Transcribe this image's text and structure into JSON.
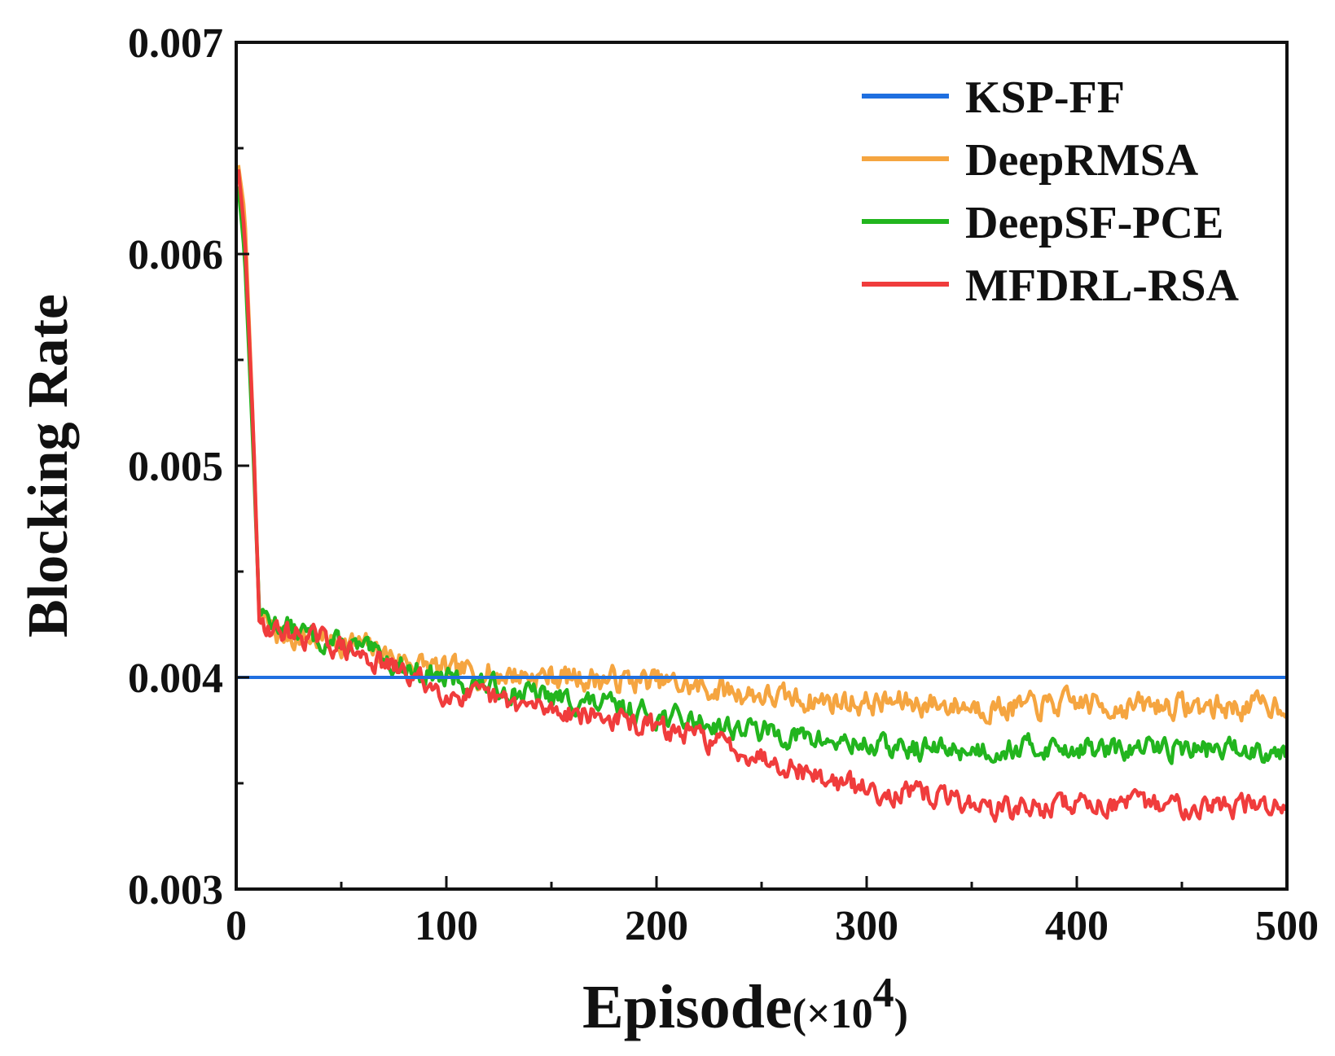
{
  "chart_data": {
    "type": "line",
    "title": "",
    "xlabel": "Episode",
    "xlabel_suffix": "(×10",
    "xlabel_exponent": "4",
    "xlabel_close": ")",
    "ylabel": "Blocking Rate",
    "xlim": [
      0,
      500
    ],
    "ylim": [
      0.003,
      0.007
    ],
    "xticks": [
      0,
      100,
      200,
      300,
      400,
      500
    ],
    "xtick_labels": [
      "0",
      "100",
      "200",
      "300",
      "400",
      "500"
    ],
    "yticks": [
      0.003,
      0.004,
      0.005,
      0.006,
      0.007
    ],
    "ytick_labels": [
      "0.003",
      "0.004",
      "0.005",
      "0.006",
      "0.007"
    ],
    "grid": false,
    "legend_position": "top-right",
    "series": [
      {
        "name": "KSP-FF",
        "color": "#1f6fe0",
        "noise": 0,
        "seed": 1,
        "points": [
          [
            0,
            0.004
          ],
          [
            500,
            0.004
          ]
        ]
      },
      {
        "name": "DeepRMSA",
        "color": "#f5a540",
        "noise": 5e-05,
        "seed": 7,
        "points": [
          [
            1,
            0.00642
          ],
          [
            4,
            0.0062
          ],
          [
            8,
            0.0052
          ],
          [
            11,
            0.00428
          ],
          [
            20,
            0.0042
          ],
          [
            40,
            0.00418
          ],
          [
            60,
            0.00415
          ],
          [
            80,
            0.00408
          ],
          [
            100,
            0.00403
          ],
          [
            120,
            0.00402
          ],
          [
            140,
            0.00401
          ],
          [
            160,
            0.004
          ],
          [
            180,
            0.00399
          ],
          [
            200,
            0.00398
          ],
          [
            220,
            0.00395
          ],
          [
            240,
            0.00393
          ],
          [
            260,
            0.0039
          ],
          [
            280,
            0.00389
          ],
          [
            300,
            0.00388
          ],
          [
            320,
            0.00388
          ],
          [
            340,
            0.00387
          ],
          [
            360,
            0.00386
          ],
          [
            380,
            0.00386
          ],
          [
            400,
            0.00388
          ],
          [
            420,
            0.00386
          ],
          [
            440,
            0.00387
          ],
          [
            460,
            0.00386
          ],
          [
            480,
            0.00386
          ],
          [
            500,
            0.00388
          ]
        ]
      },
      {
        "name": "DeepSF-PCE",
        "color": "#22b51e",
        "noise": 4.5e-05,
        "seed": 13,
        "points": [
          [
            1,
            0.00632
          ],
          [
            4,
            0.006
          ],
          [
            8,
            0.0051
          ],
          [
            11,
            0.0043
          ],
          [
            20,
            0.00425
          ],
          [
            40,
            0.00418
          ],
          [
            60,
            0.00413
          ],
          [
            80,
            0.00405
          ],
          [
            100,
            0.00399
          ],
          [
            120,
            0.00396
          ],
          [
            140,
            0.00392
          ],
          [
            160,
            0.00389
          ],
          [
            180,
            0.00386
          ],
          [
            200,
            0.00382
          ],
          [
            220,
            0.00379
          ],
          [
            240,
            0.00376
          ],
          [
            260,
            0.00373
          ],
          [
            280,
            0.0037
          ],
          [
            300,
            0.00368
          ],
          [
            320,
            0.00366
          ],
          [
            340,
            0.00366
          ],
          [
            360,
            0.00366
          ],
          [
            380,
            0.00367
          ],
          [
            400,
            0.00367
          ],
          [
            420,
            0.00365
          ],
          [
            440,
            0.00367
          ],
          [
            460,
            0.00366
          ],
          [
            480,
            0.00366
          ],
          [
            500,
            0.00366
          ]
        ]
      },
      {
        "name": "MFDRL-RSA",
        "color": "#f03c3c",
        "noise": 4.5e-05,
        "seed": 29,
        "points": [
          [
            1,
            0.0064
          ],
          [
            4,
            0.0061
          ],
          [
            8,
            0.0052
          ],
          [
            11,
            0.00426
          ],
          [
            20,
            0.00422
          ],
          [
            40,
            0.00418
          ],
          [
            60,
            0.0041
          ],
          [
            80,
            0.00402
          ],
          [
            100,
            0.00393
          ],
          [
            120,
            0.0039
          ],
          [
            140,
            0.00386
          ],
          [
            160,
            0.00384
          ],
          [
            180,
            0.0038
          ],
          [
            200,
            0.00376
          ],
          [
            220,
            0.00372
          ],
          [
            240,
            0.00366
          ],
          [
            260,
            0.0036
          ],
          [
            280,
            0.00352
          ],
          [
            300,
            0.00347
          ],
          [
            320,
            0.00345
          ],
          [
            340,
            0.00343
          ],
          [
            360,
            0.00338
          ],
          [
            380,
            0.00338
          ],
          [
            400,
            0.00341
          ],
          [
            420,
            0.0034
          ],
          [
            440,
            0.0034
          ],
          [
            460,
            0.0034
          ],
          [
            480,
            0.00339
          ],
          [
            500,
            0.0034
          ]
        ]
      }
    ]
  }
}
